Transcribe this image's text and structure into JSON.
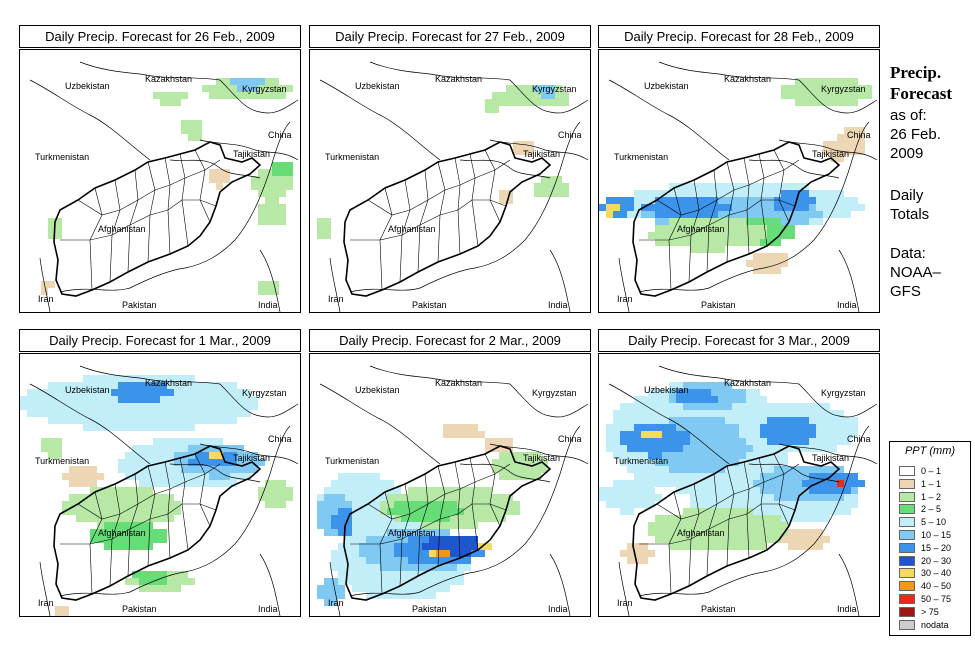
{
  "panels": [
    {
      "title": "Daily Precip. Forecast for  26 Feb., 2009"
    },
    {
      "title": "Daily Precip. Forecast for  27 Feb., 2009"
    },
    {
      "title": "Daily Precip. Forecast for  28 Feb., 2009"
    },
    {
      "title": "Daily Precip. Forecast for  1 Mar., 2009"
    },
    {
      "title": "Daily Precip. Forecast for  2 Mar., 2009"
    },
    {
      "title": "Daily Precip. Forecast for  3 Mar., 2009"
    }
  ],
  "map_labels": {
    "uzbekistan": "Uzbekistan",
    "kazakhstan": "Kazakhstan",
    "kyrgyzstan": "Kyrgyzstan",
    "china": "China",
    "tajikistan": "Tajikistan",
    "turkmenistan": "Turkmenistan",
    "afghanistan": "Afghanistan",
    "pakistan": "Pakistan",
    "iran": "Iran",
    "india": "India"
  },
  "side": {
    "title_line1": "Precip.",
    "title_line2": "Forecast",
    "asof_line1": "as of:",
    "asof_line2": "26 Feb.",
    "asof_line3": "2009",
    "totals_line1": "Daily",
    "totals_line2": "Totals",
    "data_line1": "Data:",
    "data_line2": "NOAA–",
    "data_line3": "GFS"
  },
  "legend": {
    "title": "PPT (mm)",
    "items": [
      {
        "label": "0 – 1",
        "color": "#ffffff"
      },
      {
        "label": "1 – 1",
        "color": "#ecd6b4"
      },
      {
        "label": "1 – 2",
        "color": "#b7e8a6"
      },
      {
        "label": "2 – 5",
        "color": "#66dd77"
      },
      {
        "label": "5 – 10",
        "color": "#c2eefa"
      },
      {
        "label": "10 – 15",
        "color": "#7fc9f2"
      },
      {
        "label": "15 – 20",
        "color": "#3c93ea"
      },
      {
        "label": "20 – 30",
        "color": "#1e56cc"
      },
      {
        "label": "30 – 40",
        "color": "#f6da5e"
      },
      {
        "label": "40 – 50",
        "color": "#f39a10"
      },
      {
        "label": "50 – 75",
        "color": "#e82a16"
      },
      {
        "label": "> 75",
        "color": "#9c1a12"
      },
      {
        "label": "nodata",
        "color": "#cccccc"
      }
    ]
  },
  "colors": {
    "tan": "#ecd6b4",
    "ltgreen": "#b7e8a6",
    "green": "#66dd77",
    "ltblue": "#c2eefa",
    "blue": "#7fc9f2",
    "mblue": "#3c93ea",
    "dblue": "#1e56cc",
    "yellow": "#f6da5e",
    "orange": "#f39a10",
    "red": "#e82a16"
  }
}
